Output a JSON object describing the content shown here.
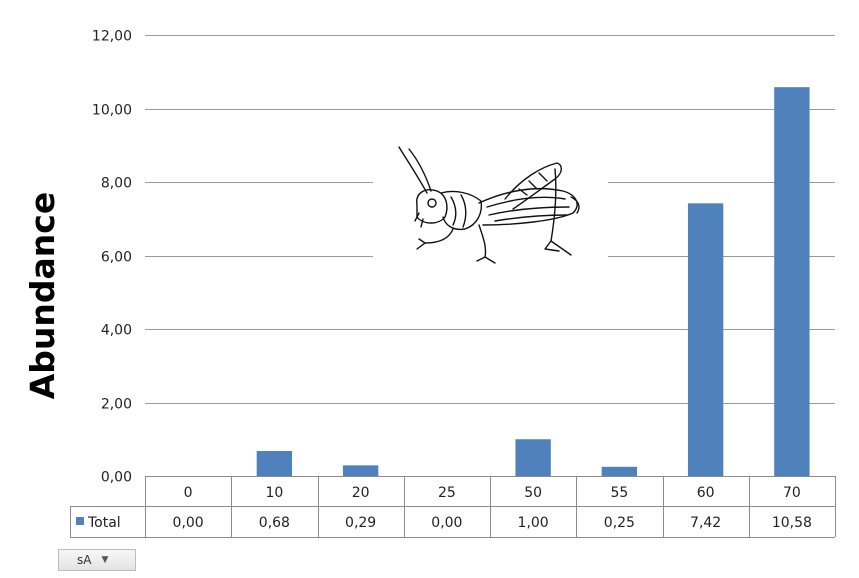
{
  "chart_data": {
    "type": "bar",
    "ylabel": "Abundance",
    "xlabel": "",
    "categories": [
      "0",
      "10",
      "20",
      "25",
      "50",
      "55",
      "60",
      "70"
    ],
    "series": [
      {
        "name": "Total",
        "values": [
          0.0,
          0.68,
          0.29,
          0.0,
          1.0,
          0.25,
          7.42,
          10.58
        ],
        "value_labels": [
          "0,00",
          "0,68",
          "0,29",
          "0,00",
          "1,00",
          "0,25",
          "7,42",
          "10,58"
        ],
        "color": "#4f81bd"
      }
    ],
    "ylim": [
      0,
      12
    ],
    "yticks": [
      0,
      2,
      4,
      6,
      8,
      10,
      12
    ],
    "ytick_labels": [
      "0,00",
      "2,00",
      "4,00",
      "6,00",
      "8,00",
      "10,00",
      "12,00"
    ],
    "grid": true,
    "data_table": true,
    "legend_placement": "data-table-row"
  },
  "filter_button": {
    "label": "sA",
    "icon": "dropdown-caret-icon"
  }
}
